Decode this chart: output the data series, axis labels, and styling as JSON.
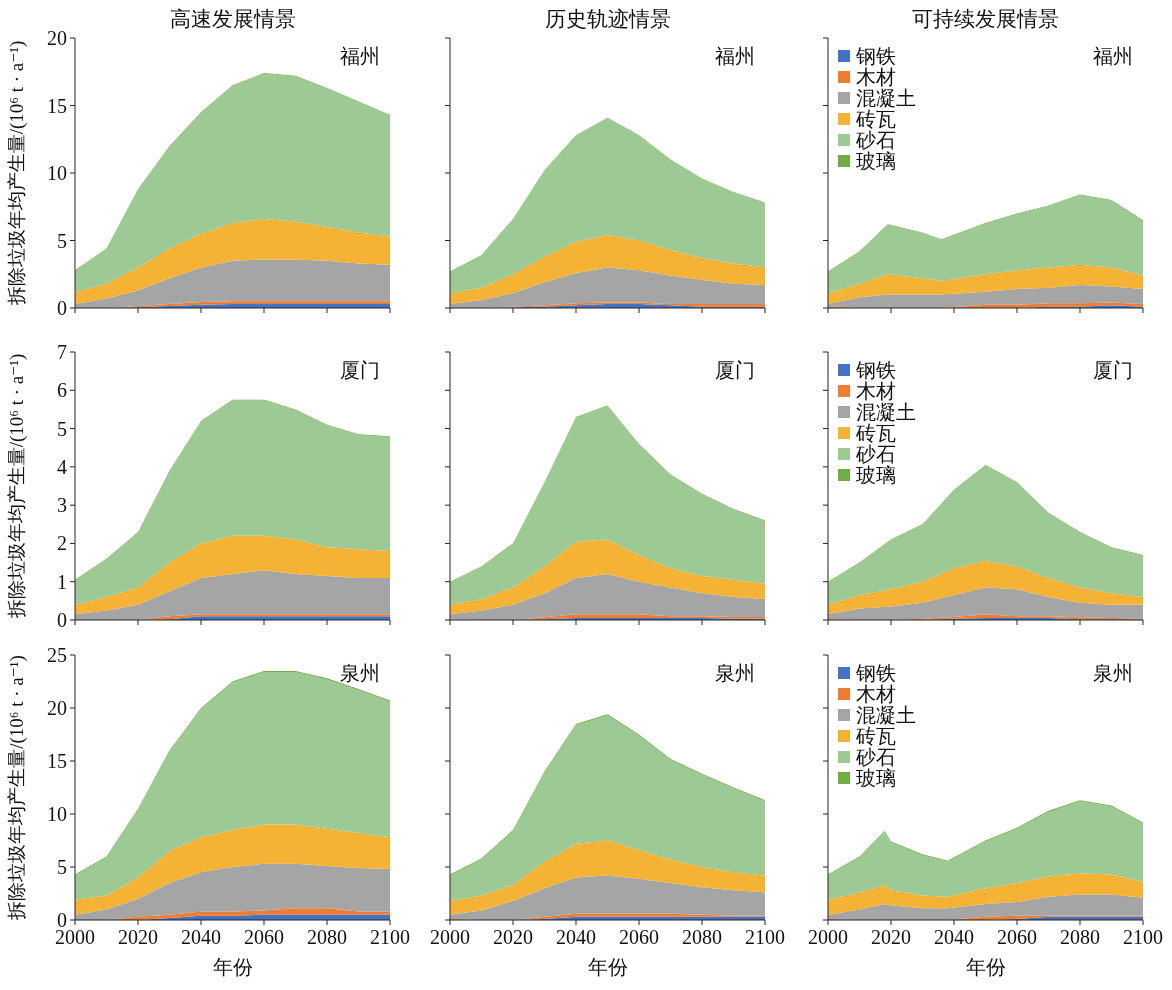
{
  "chart_data": [
    {
      "type": "area",
      "stacked": true,
      "title": "高速发展情景",
      "ylabel": "拆除垃圾年均产生量/(10⁶ t · a⁻¹)",
      "annotations": [
        "福州"
      ],
      "x": [
        2000,
        2010,
        2020,
        2030,
        2040,
        2050,
        2060,
        2070,
        2080,
        2090,
        2100
      ],
      "xlim": [
        2000,
        2100
      ],
      "xticks": [
        2000,
        2020,
        2040,
        2060,
        2080,
        2100
      ],
      "ylim": [
        0,
        20
      ],
      "yticks": [
        0,
        5,
        10,
        15,
        20
      ],
      "tick_labels": "y",
      "series": [
        {
          "color": "#4472c4",
          "values": [
            0,
            0,
            0.05,
            0.15,
            0.25,
            0.3,
            0.3,
            0.3,
            0.3,
            0.3,
            0.3
          ]
        },
        {
          "color": "#ed7d31",
          "values": [
            0,
            0,
            0.1,
            0.15,
            0.2,
            0.2,
            0.2,
            0.2,
            0.2,
            0.2,
            0.2
          ]
        },
        {
          "color": "#a5a5a5",
          "values": [
            0.3,
            0.7,
            1.15,
            1.9,
            2.55,
            3.0,
            3.1,
            3.1,
            3.0,
            2.8,
            2.7
          ]
        },
        {
          "color": "#f4b334",
          "values": [
            0.9,
            1.1,
            1.7,
            2.2,
            2.5,
            2.8,
            3.0,
            2.8,
            2.5,
            2.3,
            2.1
          ]
        },
        {
          "color": "#9dc995",
          "values": [
            1.55,
            2.55,
            5.75,
            7.55,
            8.95,
            10.15,
            10.75,
            10.75,
            10.25,
            9.65,
            8.95
          ]
        },
        {
          "color": "#70ad47",
          "values": [
            0.05,
            0.05,
            0.05,
            0.05,
            0.05,
            0.05,
            0.05,
            0.05,
            0.05,
            0.05,
            0.05
          ]
        }
      ]
    },
    {
      "type": "area",
      "stacked": true,
      "title": "历史轨迹情景",
      "annotations": [
        "福州"
      ],
      "x": [
        2000,
        2010,
        2020,
        2030,
        2040,
        2050,
        2060,
        2070,
        2080,
        2090,
        2100
      ],
      "xlim": [
        2000,
        2100
      ],
      "xticks": [
        2000,
        2020,
        2040,
        2060,
        2080,
        2100
      ],
      "ylim": [
        0,
        20
      ],
      "yticks": [
        0,
        5,
        10,
        15,
        20
      ],
      "tick_labels": false,
      "series": [
        {
          "color": "#4472c4",
          "values": [
            0,
            0,
            0.05,
            0.1,
            0.2,
            0.3,
            0.3,
            0.2,
            0.1,
            0.1,
            0.1
          ]
        },
        {
          "color": "#ed7d31",
          "values": [
            0,
            0,
            0.05,
            0.1,
            0.15,
            0.1,
            0.1,
            0.1,
            0.2,
            0.2,
            0.2
          ]
        },
        {
          "color": "#a5a5a5",
          "values": [
            0.3,
            0.6,
            1.0,
            1.7,
            2.25,
            2.6,
            2.4,
            2.1,
            1.8,
            1.5,
            1.4
          ]
        },
        {
          "color": "#f4b334",
          "values": [
            0.8,
            0.9,
            1.4,
            1.9,
            2.3,
            2.4,
            2.2,
            1.9,
            1.6,
            1.5,
            1.3
          ]
        },
        {
          "color": "#9dc995",
          "values": [
            1.55,
            2.35,
            4.05,
            6.35,
            7.85,
            8.65,
            7.75,
            6.65,
            5.85,
            5.25,
            4.75
          ]
        },
        {
          "color": "#70ad47",
          "values": [
            0.05,
            0.05,
            0.05,
            0.05,
            0.05,
            0.05,
            0.05,
            0.05,
            0.05,
            0.05,
            0.05
          ]
        }
      ]
    },
    {
      "type": "area",
      "stacked": true,
      "title": "可持续发展情景",
      "annotations": [
        "福州"
      ],
      "legend": "top left",
      "x": [
        2000,
        2010,
        2019,
        2030,
        2036,
        2050,
        2060,
        2070,
        2080,
        2090,
        2100
      ],
      "xlim": [
        2000,
        2100
      ],
      "xticks": [
        2000,
        2020,
        2040,
        2060,
        2080,
        2100
      ],
      "ylim": [
        0,
        20
      ],
      "yticks": [
        0,
        5,
        10,
        15,
        20
      ],
      "tick_labels": false,
      "series": [
        {
          "name": "钢铁",
          "color": "#4472c4",
          "values": [
            0,
            0,
            0,
            0,
            0,
            0,
            0,
            0.1,
            0.1,
            0.2,
            0.1
          ]
        },
        {
          "name": "木材",
          "color": "#ed7d31",
          "values": [
            0.15,
            0,
            0,
            0,
            0,
            0.25,
            0.25,
            0.25,
            0.25,
            0.2,
            0.2
          ]
        },
        {
          "name": "混凝土",
          "color": "#a5a5a5",
          "values": [
            0.15,
            0.8,
            1.0,
            1.0,
            1.0,
            0.95,
            1.15,
            1.15,
            1.35,
            1.2,
            1.1
          ]
        },
        {
          "name": "砖瓦",
          "color": "#f4b334",
          "values": [
            0.8,
            1.0,
            1.5,
            1.2,
            1.0,
            1.3,
            1.4,
            1.5,
            1.5,
            1.4,
            1.0
          ]
        },
        {
          "name": "砂石",
          "color": "#9dc995",
          "values": [
            1.55,
            2.35,
            3.65,
            3.35,
            3.05,
            3.75,
            4.15,
            4.55,
            5.15,
            4.95,
            4.05
          ]
        },
        {
          "name": "玻璃",
          "color": "#70ad47",
          "values": [
            0.05,
            0.05,
            0.05,
            0.05,
            0.05,
            0.05,
            0.05,
            0.05,
            0.05,
            0.05,
            0.05
          ]
        }
      ]
    },
    {
      "type": "area",
      "stacked": true,
      "ylabel": "拆除垃圾年均产生量/(10⁶ t · a⁻¹)",
      "annotations": [
        "厦门"
      ],
      "x": [
        2000,
        2010,
        2020,
        2030,
        2040,
        2050,
        2060,
        2070,
        2080,
        2090,
        2100
      ],
      "xlim": [
        2000,
        2100
      ],
      "xticks": [
        2000,
        2020,
        2040,
        2060,
        2080,
        2100
      ],
      "ylim": [
        0,
        7
      ],
      "yticks": [
        0,
        1,
        2,
        3,
        4,
        5,
        6,
        7
      ],
      "tick_labels": "y",
      "series": [
        {
          "color": "#4472c4",
          "values": [
            0,
            0,
            0,
            0.02,
            0.1,
            0.1,
            0.1,
            0.1,
            0.1,
            0.1,
            0.1
          ]
        },
        {
          "color": "#ed7d31",
          "values": [
            0,
            0,
            0,
            0.08,
            0.05,
            0.05,
            0.05,
            0.05,
            0.05,
            0.05,
            0.05
          ]
        },
        {
          "color": "#a5a5a5",
          "values": [
            0.15,
            0.25,
            0.4,
            0.65,
            0.95,
            1.05,
            1.15,
            1.05,
            1.0,
            0.95,
            0.95
          ]
        },
        {
          "color": "#f4b334",
          "values": [
            0.25,
            0.35,
            0.45,
            0.75,
            0.9,
            1.0,
            0.9,
            0.9,
            0.75,
            0.75,
            0.7
          ]
        },
        {
          "color": "#9dc995",
          "values": [
            0.63,
            0.98,
            1.43,
            2.38,
            3.18,
            3.53,
            3.53,
            3.38,
            3.18,
            2.98,
            2.98
          ]
        },
        {
          "color": "#70ad47",
          "values": [
            0.02,
            0.02,
            0.02,
            0.02,
            0.02,
            0.02,
            0.02,
            0.02,
            0.02,
            0.02,
            0.02
          ]
        }
      ]
    },
    {
      "type": "area",
      "stacked": true,
      "annotations": [
        "厦门"
      ],
      "x": [
        2000,
        2010,
        2020,
        2030,
        2040,
        2050,
        2060,
        2070,
        2080,
        2090,
        2100
      ],
      "xlim": [
        2000,
        2100
      ],
      "xticks": [
        2000,
        2020,
        2040,
        2060,
        2080,
        2100
      ],
      "ylim": [
        0,
        7
      ],
      "yticks": [
        0,
        1,
        2,
        3,
        4,
        5,
        6,
        7
      ],
      "tick_labels": false,
      "series": [
        {
          "color": "#4472c4",
          "values": [
            0,
            0,
            0,
            0.02,
            0.05,
            0.05,
            0.05,
            0.05,
            0.05,
            0.03,
            0.03
          ]
        },
        {
          "color": "#ed7d31",
          "values": [
            0.02,
            0,
            0,
            0.05,
            0.1,
            0.1,
            0.1,
            0.05,
            0.05,
            0.05,
            0.05
          ]
        },
        {
          "color": "#a5a5a5",
          "values": [
            0.13,
            0.25,
            0.4,
            0.63,
            0.95,
            1.05,
            0.85,
            0.75,
            0.6,
            0.52,
            0.47
          ]
        },
        {
          "color": "#f4b334",
          "values": [
            0.25,
            0.3,
            0.45,
            0.7,
            0.95,
            0.9,
            0.7,
            0.5,
            0.45,
            0.45,
            0.4
          ]
        },
        {
          "color": "#9dc995",
          "values": [
            0.58,
            0.83,
            1.13,
            2.18,
            3.23,
            3.48,
            2.88,
            2.43,
            2.13,
            1.83,
            1.63
          ]
        },
        {
          "color": "#70ad47",
          "values": [
            0.02,
            0.02,
            0.02,
            0.02,
            0.02,
            0.02,
            0.02,
            0.02,
            0.02,
            0.02,
            0.02
          ]
        }
      ]
    },
    {
      "type": "area",
      "stacked": true,
      "annotations": [
        "厦门"
      ],
      "legend": "top left",
      "x": [
        2000,
        2010,
        2020,
        2030,
        2040,
        2050,
        2060,
        2070,
        2080,
        2090,
        2100
      ],
      "xlim": [
        2000,
        2100
      ],
      "xticks": [
        2000,
        2020,
        2040,
        2060,
        2080,
        2100
      ],
      "ylim": [
        0,
        7
      ],
      "yticks": [
        0,
        1,
        2,
        3,
        4,
        5,
        6,
        7
      ],
      "tick_labels": false,
      "series": [
        {
          "name": "钢铁",
          "color": "#4472c4",
          "values": [
            0,
            0,
            0,
            0,
            0.03,
            0.05,
            0.05,
            0.05,
            0.02,
            0.02,
            0.02
          ]
        },
        {
          "name": "木材",
          "color": "#ed7d31",
          "values": [
            0.02,
            0,
            0,
            0.03,
            0.05,
            0.1,
            0.05,
            0.05,
            0.05,
            0.03,
            0.02
          ]
        },
        {
          "name": "混凝土",
          "color": "#a5a5a5",
          "values": [
            0.13,
            0.3,
            0.35,
            0.42,
            0.57,
            0.7,
            0.7,
            0.5,
            0.38,
            0.35,
            0.36
          ]
        },
        {
          "name": "砖瓦",
          "color": "#f4b334",
          "values": [
            0.25,
            0.35,
            0.45,
            0.55,
            0.7,
            0.7,
            0.6,
            0.5,
            0.4,
            0.3,
            0.2
          ]
        },
        {
          "name": "砂石",
          "color": "#9dc995",
          "values": [
            0.58,
            0.83,
            1.28,
            1.48,
            2.03,
            2.48,
            2.18,
            1.68,
            1.43,
            1.18,
            1.08
          ]
        },
        {
          "name": "玻璃",
          "color": "#70ad47",
          "values": [
            0.02,
            0.02,
            0.02,
            0.02,
            0.02,
            0.02,
            0.02,
            0.02,
            0.02,
            0.02,
            0.02
          ]
        }
      ]
    },
    {
      "type": "area",
      "stacked": true,
      "ylabel": "拆除垃圾年均产生量/(10⁶ t · a⁻¹)",
      "xlabel": "年份",
      "annotations": [
        "泉州"
      ],
      "x": [
        2000,
        2010,
        2020,
        2030,
        2040,
        2050,
        2060,
        2070,
        2080,
        2090,
        2100
      ],
      "xlim": [
        2000,
        2100
      ],
      "xticks": [
        2000,
        2020,
        2040,
        2060,
        2080,
        2100
      ],
      "ylim": [
        0,
        25
      ],
      "yticks": [
        0,
        5,
        10,
        15,
        20,
        25
      ],
      "series": [
        {
          "color": "#4472c4",
          "values": [
            0,
            0,
            0,
            0.2,
            0.4,
            0.4,
            0.5,
            0.5,
            0.5,
            0.5,
            0.5
          ]
        },
        {
          "color": "#ed7d31",
          "values": [
            0,
            0,
            0.3,
            0.3,
            0.4,
            0.4,
            0.4,
            0.6,
            0.6,
            0.3,
            0.3
          ]
        },
        {
          "color": "#a5a5a5",
          "values": [
            0.5,
            1.0,
            1.7,
            3.0,
            3.7,
            4.2,
            4.4,
            4.2,
            4.0,
            4.1,
            4.0
          ]
        },
        {
          "color": "#f4b334",
          "values": [
            1.4,
            1.3,
            2.0,
            3.0,
            3.3,
            3.5,
            3.7,
            3.7,
            3.5,
            3.3,
            3.0
          ]
        },
        {
          "color": "#9dc995",
          "values": [
            2.3,
            3.6,
            6.4,
            9.4,
            12.1,
            13.9,
            14.4,
            14.4,
            14.1,
            13.5,
            12.8
          ]
        },
        {
          "color": "#70ad47",
          "values": [
            0.1,
            0.1,
            0.1,
            0.1,
            0.1,
            0.1,
            0.1,
            0.1,
            0.1,
            0.1,
            0.1
          ]
        }
      ]
    },
    {
      "type": "area",
      "stacked": true,
      "xlabel": "年份",
      "annotations": [
        "泉州"
      ],
      "x": [
        2000,
        2010,
        2020,
        2030,
        2040,
        2050,
        2060,
        2070,
        2080,
        2090,
        2100
      ],
      "xlim": [
        2000,
        2100
      ],
      "xticks": [
        2000,
        2020,
        2040,
        2060,
        2080,
        2100
      ],
      "ylim": [
        0,
        25
      ],
      "yticks": [
        0,
        5,
        10,
        15,
        20,
        25
      ],
      "tick_labels": "x",
      "series": [
        {
          "color": "#4472c4",
          "values": [
            0,
            0,
            0,
            0.1,
            0.3,
            0.3,
            0.3,
            0.3,
            0.3,
            0.3,
            0.3
          ]
        },
        {
          "color": "#ed7d31",
          "values": [
            0.1,
            0,
            0,
            0.2,
            0.3,
            0.3,
            0.3,
            0.3,
            0.2,
            0.1,
            0.1
          ]
        },
        {
          "color": "#a5a5a5",
          "values": [
            0.4,
            0.9,
            1.8,
            2.7,
            3.4,
            3.6,
            3.3,
            2.9,
            2.6,
            2.4,
            2.2
          ]
        },
        {
          "color": "#f4b334",
          "values": [
            1.3,
            1.4,
            1.5,
            2.5,
            3.2,
            3.3,
            2.7,
            2.2,
            1.9,
            1.7,
            1.6
          ]
        },
        {
          "color": "#9dc995",
          "values": [
            2.4,
            3.4,
            5.1,
            8.4,
            11.2,
            11.8,
            10.8,
            9.4,
            8.7,
            7.9,
            7.0
          ]
        },
        {
          "color": "#70ad47",
          "values": [
            0.1,
            0.1,
            0.1,
            0.1,
            0.1,
            0.1,
            0.1,
            0.1,
            0.1,
            0.1,
            0.1
          ]
        }
      ]
    },
    {
      "type": "area",
      "stacked": true,
      "xlabel": "年份",
      "annotations": [
        "泉州"
      ],
      "legend": "top left",
      "x": [
        2000,
        2010,
        2018,
        2020,
        2030,
        2038,
        2050,
        2060,
        2070,
        2080,
        2090,
        2100
      ],
      "xlim": [
        2000,
        2100
      ],
      "xticks": [
        2000,
        2020,
        2040,
        2060,
        2080,
        2100
      ],
      "ylim": [
        0,
        25
      ],
      "yticks": [
        0,
        5,
        10,
        15,
        20,
        25
      ],
      "tick_labels": "x",
      "series": [
        {
          "name": "钢铁",
          "color": "#4472c4",
          "values": [
            0,
            0,
            0,
            0,
            0,
            0,
            0,
            0.1,
            0.3,
            0.3,
            0.3,
            0.3
          ]
        },
        {
          "name": "木材",
          "color": "#ed7d31",
          "values": [
            0.1,
            0,
            0,
            0,
            0,
            0,
            0.3,
            0.3,
            0.1,
            0.1,
            0.1,
            0.1
          ]
        },
        {
          "name": "混凝土",
          "color": "#a5a5a5",
          "values": [
            0.4,
            1.0,
            1.5,
            1.4,
            1.1,
            1.1,
            1.2,
            1.3,
            1.8,
            2.0,
            2.0,
            1.7
          ]
        },
        {
          "name": "砖瓦",
          "color": "#f4b334",
          "values": [
            1.4,
            1.6,
            1.8,
            1.4,
            1.2,
            1.1,
            1.5,
            1.8,
            1.9,
            2.0,
            1.9,
            1.5
          ]
        },
        {
          "name": "砂石",
          "color": "#9dc995",
          "values": [
            2.3,
            3.3,
            5.0,
            4.5,
            3.8,
            3.3,
            4.4,
            5.1,
            6.1,
            6.8,
            6.4,
            5.5
          ]
        },
        {
          "name": "玻璃",
          "color": "#70ad47",
          "values": [
            0.1,
            0.1,
            0.1,
            0.1,
            0.1,
            0.1,
            0.1,
            0.1,
            0.1,
            0.1,
            0.1,
            0.1
          ]
        }
      ]
    }
  ]
}
